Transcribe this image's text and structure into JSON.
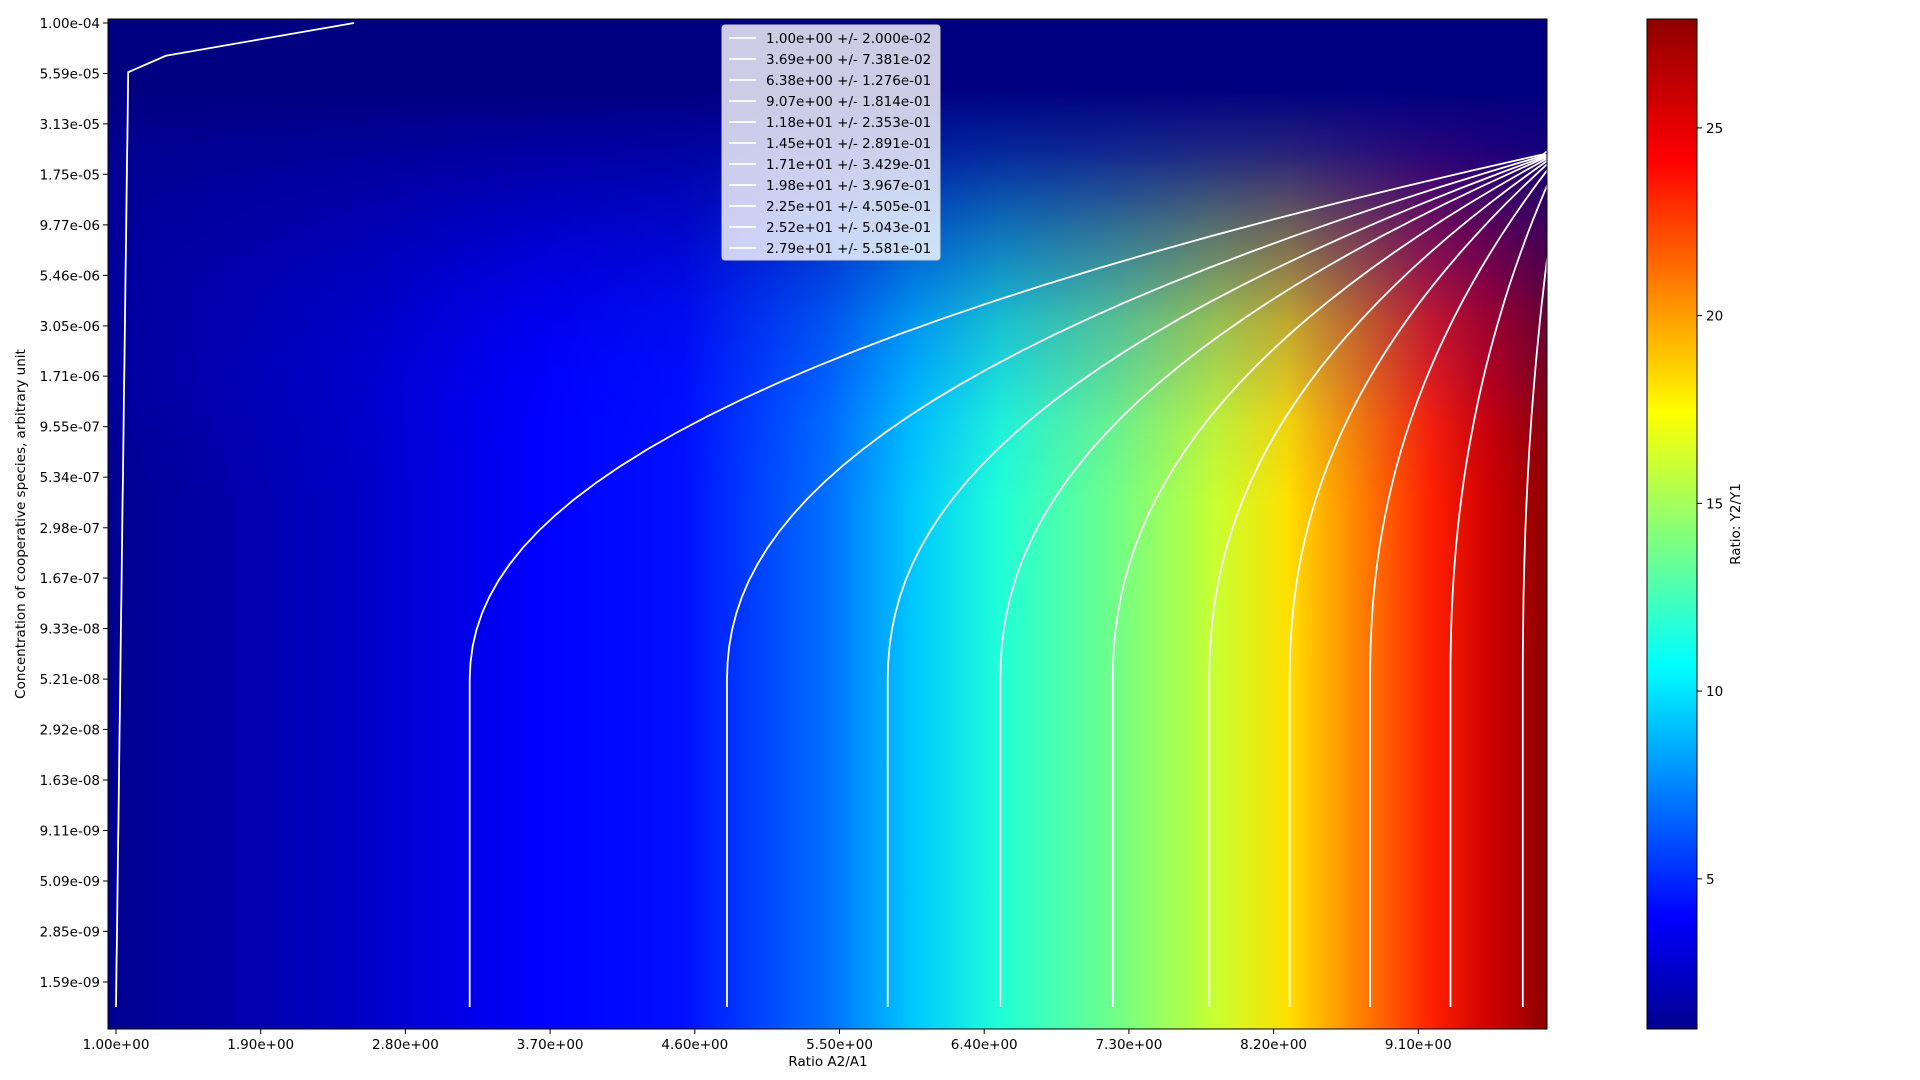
{
  "chart_data": {
    "type": "heatmap",
    "xlabel": "Ratio A2/A1",
    "ylabel": "Concentration of cooperative species, arbitrary unit",
    "colorbar_label": "Ratio: Y2/Y1",
    "colormap": "jet",
    "x_range": [
      1.0,
      10.0
    ],
    "y_range_log10": [
      -9.0,
      -4.0
    ],
    "color_range": [
      1.0,
      27.9
    ],
    "x_ticks": [
      "1.00e+00",
      "1.90e+00",
      "2.80e+00",
      "3.70e+00",
      "4.60e+00",
      "5.50e+00",
      "6.40e+00",
      "7.30e+00",
      "8.20e+00",
      "9.10e+00"
    ],
    "x_tick_values": [
      1.0,
      1.9,
      2.8,
      3.7,
      4.6,
      5.5,
      6.4,
      7.3,
      8.2,
      9.1
    ],
    "y_ticks": [
      "1.59e-09",
      "2.85e-09",
      "5.09e-09",
      "9.11e-09",
      "1.63e-08",
      "2.92e-08",
      "5.21e-08",
      "9.33e-08",
      "1.67e-07",
      "2.98e-07",
      "5.34e-07",
      "9.55e-07",
      "1.71e-06",
      "3.05e-06",
      "5.46e-06",
      "9.77e-06",
      "1.75e-05",
      "3.13e-05",
      "5.59e-05",
      "1.00e-04"
    ],
    "y_tick_values": [
      1.59e-09,
      2.85e-09,
      5.09e-09,
      9.11e-09,
      1.63e-08,
      2.92e-08,
      5.21e-08,
      9.33e-08,
      1.67e-07,
      2.98e-07,
      5.34e-07,
      9.55e-07,
      1.71e-06,
      3.05e-06,
      5.46e-06,
      9.77e-06,
      1.75e-05,
      3.13e-05,
      5.59e-05,
      0.0001
    ],
    "colorbar_ticks": [
      "5",
      "10",
      "15",
      "20",
      "25"
    ],
    "colorbar_tick_values": [
      5,
      10,
      15,
      20,
      25
    ],
    "legend_position": "top-center",
    "contours": [
      {
        "label": "1.00e+00 +/- 2.000e-02",
        "level": 1.0,
        "x_asymptote": 1.0
      },
      {
        "label": "3.69e+00 +/- 7.381e-02",
        "level": 3.69,
        "x_asymptote": 3.2
      },
      {
        "label": "6.38e+00 +/- 1.276e-01",
        "level": 6.38,
        "x_asymptote": 4.8
      },
      {
        "label": "9.07e+00 +/- 1.814e-01",
        "level": 9.07,
        "x_asymptote": 5.8
      },
      {
        "label": "1.18e+01 +/- 2.353e-01",
        "level": 11.8,
        "x_asymptote": 6.5
      },
      {
        "label": "1.45e+01 +/- 2.891e-01",
        "level": 14.5,
        "x_asymptote": 7.2
      },
      {
        "label": "1.71e+01 +/- 3.429e-01",
        "level": 17.1,
        "x_asymptote": 7.8
      },
      {
        "label": "1.98e+01 +/- 3.967e-01",
        "level": 19.8,
        "x_asymptote": 8.3
      },
      {
        "label": "2.25e+01 +/- 4.505e-01",
        "level": 22.5,
        "x_asymptote": 8.8
      },
      {
        "label": "2.52e+01 +/- 5.043e-01",
        "level": 25.2,
        "x_asymptote": 9.3
      },
      {
        "label": "2.79e+01 +/- 5.581e-01",
        "level": 27.9,
        "x_asymptote": 9.75
      }
    ]
  }
}
